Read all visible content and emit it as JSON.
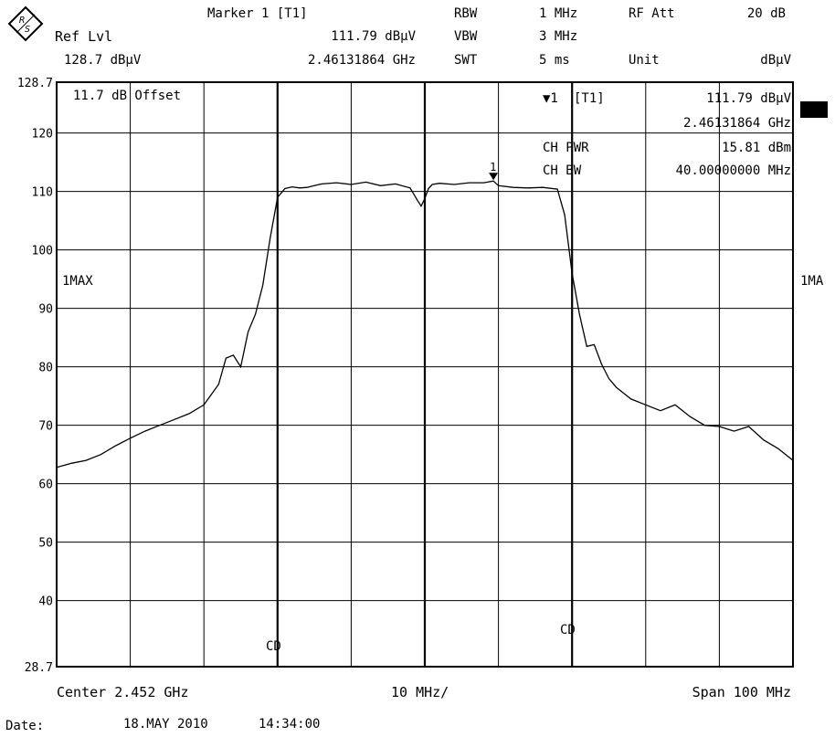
{
  "header": {
    "marker_title": "Marker 1 [T1]",
    "ref_lvl_label": "Ref Lvl",
    "ref_lvl_value": "128.7 dBµV",
    "marker_level": "111.79 dBµV",
    "marker_freq": "2.46131864 GHz",
    "rbw_label": "RBW",
    "rbw_value": "1 MHz",
    "vbw_label": "VBW",
    "vbw_value": "3 MHz",
    "swt_label": "SWT",
    "swt_value": "5 ms",
    "rfatt_label": "RF Att",
    "rfatt_value": "20 dB",
    "unit_label": "Unit",
    "unit_value": "dBµV"
  },
  "overlay": {
    "offset_text": "11.7 dB Offset",
    "marker_symbol": "▼1",
    "marker_tag": "[T1]",
    "marker_level": "111.79 dBµV",
    "marker_freq": "2.46131864 GHz",
    "ch_pwr_label": "CH PWR",
    "ch_pwr_value": "15.81 dBm",
    "ch_bw_label": "CH BW",
    "ch_bw_value": "40.00000000 MHz",
    "trace_left_label": "1MAX",
    "trace_right_label": "1MA",
    "channel_marker_label": "CD",
    "marker_number": "1"
  },
  "footer": {
    "center": "Center 2.452 GHz",
    "div": "10 MHz/",
    "span": "Span 100 MHz",
    "date_label": "Date:",
    "date_value": "18.MAY 2010",
    "time_value": "14:34:00"
  },
  "chart_data": {
    "type": "line",
    "xlabel": "",
    "ylabel": "",
    "x_unit": "GHz",
    "x_range": [
      2.402,
      2.502
    ],
    "ylim": [
      28.7,
      128.7
    ],
    "y_ticks": [
      "128.7",
      "120",
      "110",
      "100",
      "90",
      "80",
      "70",
      "60",
      "50",
      "40",
      "28.7"
    ],
    "grid": true,
    "x_divisions": 10,
    "channel_edges_ghz": [
      2.432,
      2.472
    ],
    "marker": {
      "x": 2.46131864,
      "y": 111.79
    },
    "series": [
      {
        "x": [
          2.402,
          2.404,
          2.406,
          2.408,
          2.41,
          2.412,
          2.414,
          2.416,
          2.418,
          2.42,
          2.422,
          2.424,
          2.425,
          2.426,
          2.427,
          2.428,
          2.429,
          2.43,
          2.431,
          2.432,
          2.433,
          2.434,
          2.435,
          2.436,
          2.437,
          2.438,
          2.44,
          2.442,
          2.444,
          2.446,
          2.448,
          2.45,
          2.451,
          2.4515,
          2.452,
          2.4525,
          2.453,
          2.454,
          2.456,
          2.458,
          2.46,
          2.4613,
          2.462,
          2.464,
          2.466,
          2.468,
          2.47,
          2.471,
          2.472,
          2.473,
          2.474,
          2.475,
          2.476,
          2.477,
          2.478,
          2.479,
          2.48,
          2.482,
          2.484,
          2.486,
          2.488,
          2.49,
          2.492,
          2.494,
          2.496,
          2.498,
          2.5,
          2.502
        ],
        "values": [
          62.8,
          63.5,
          64.0,
          65.0,
          66.5,
          67.8,
          69.0,
          70.0,
          71.0,
          72.0,
          73.5,
          77.0,
          81.5,
          82.0,
          80.0,
          86.0,
          89.0,
          94.0,
          102.0,
          109.0,
          110.5,
          110.8,
          110.6,
          110.7,
          111.0,
          111.3,
          111.5,
          111.2,
          111.6,
          111.0,
          111.3,
          110.6,
          108.5,
          107.5,
          108.8,
          110.5,
          111.2,
          111.4,
          111.2,
          111.5,
          111.5,
          111.79,
          111.0,
          110.7,
          110.6,
          110.7,
          110.4,
          106.0,
          96.0,
          89.0,
          83.5,
          83.8,
          80.5,
          78.0,
          76.5,
          75.5,
          74.5,
          73.5,
          72.5,
          73.5,
          71.5,
          70.0,
          69.8,
          69.0,
          69.8,
          67.5,
          66.0,
          64.0
        ]
      }
    ]
  }
}
